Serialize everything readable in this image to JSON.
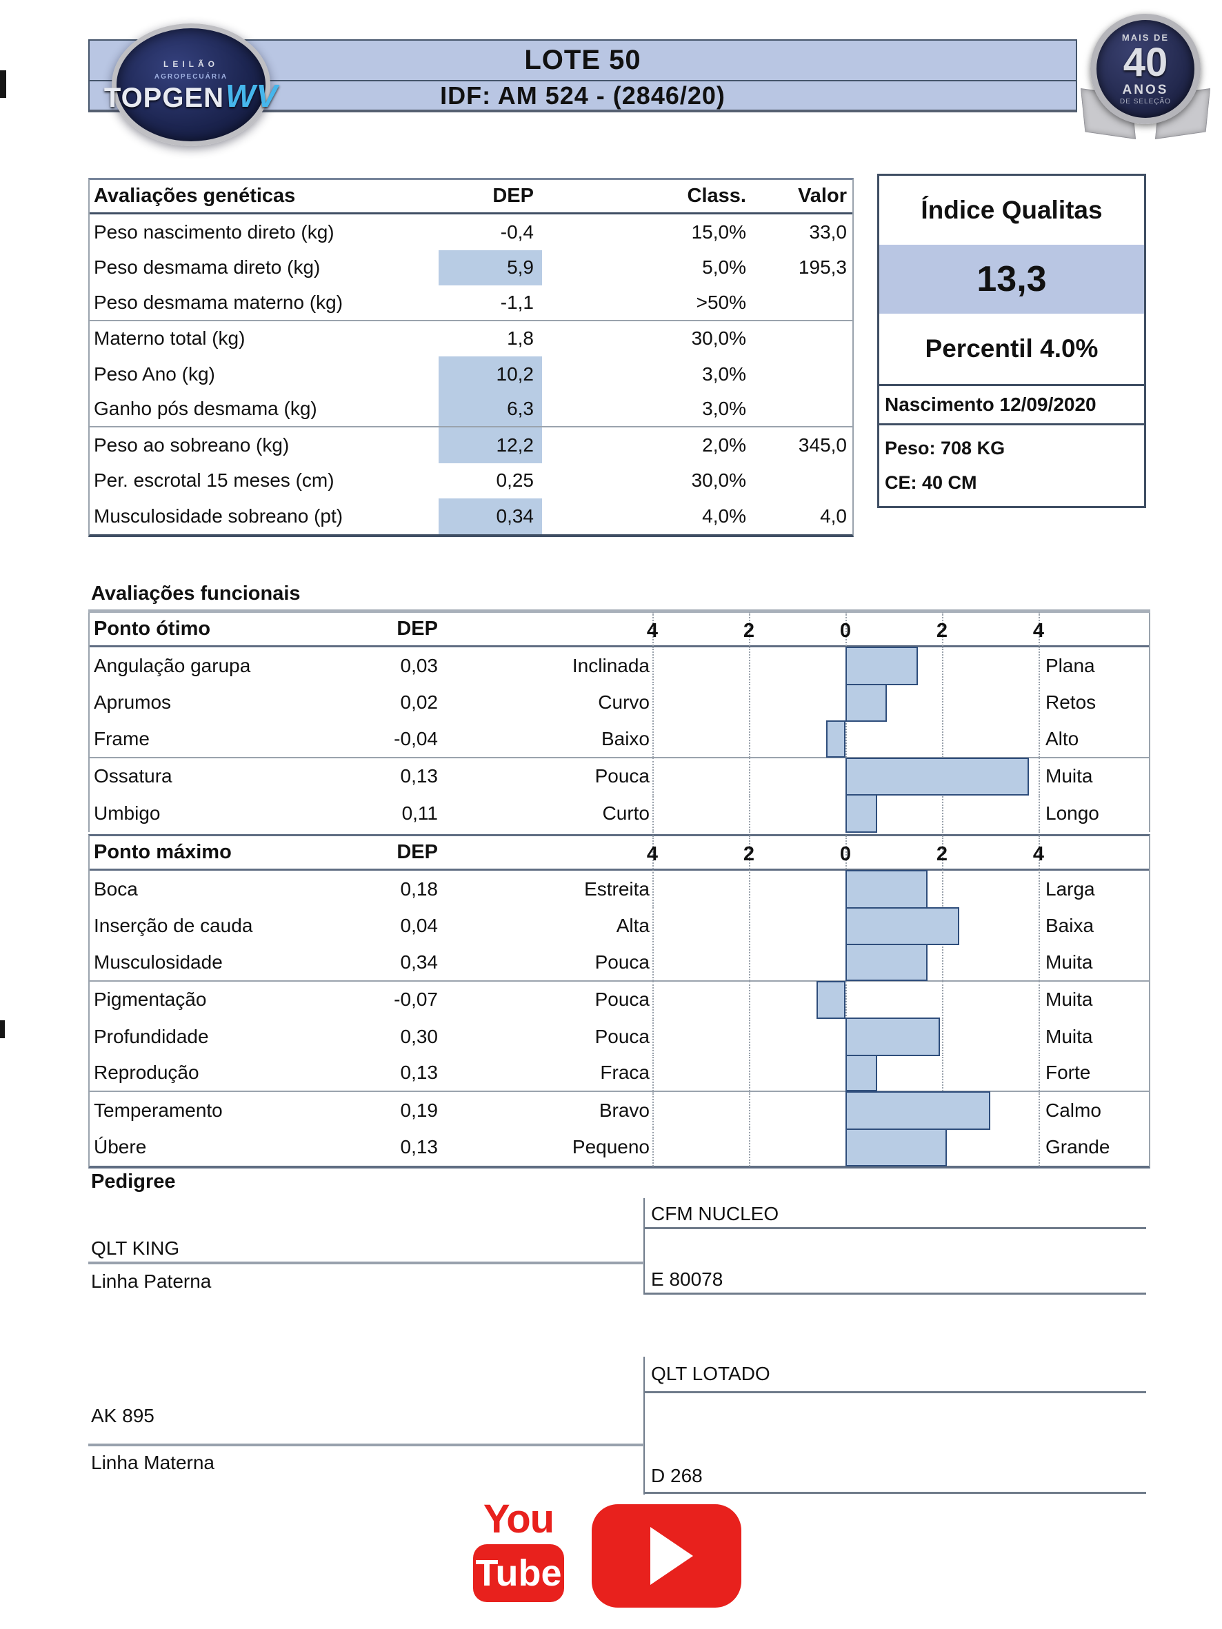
{
  "header": {
    "lot_title": "LOTE 50",
    "idf_line": "IDF: AM 524 - (2846/20)",
    "logo": {
      "line1": "LEILÃO",
      "line2": "AGROPECUÁRIA",
      "main": "TOPGEN",
      "suffix": "WV"
    },
    "badge": {
      "top_text": "MAIS DE",
      "number": "40",
      "bottom_text": "ANOS",
      "sub_text": "DE SELEÇÃO"
    }
  },
  "genetics": {
    "title": "Avaliações genéticas",
    "col_dep": "DEP",
    "col_class": "Class.",
    "col_valor": "Valor",
    "rows": [
      {
        "label": "Peso nascimento direto (kg)",
        "dep": "-0,4",
        "cls": "15,0%",
        "val": "33,0",
        "hl": false,
        "sep": false
      },
      {
        "label": "Peso desmama direto (kg)",
        "dep": "5,9",
        "cls": "5,0%",
        "val": "195,3",
        "hl": true,
        "sep": false
      },
      {
        "label": "Peso desmama materno (kg)",
        "dep": "-1,1",
        "cls": ">50%",
        "val": "",
        "hl": false,
        "sep": true
      },
      {
        "label": "Materno total (kg)",
        "dep": "1,8",
        "cls": "30,0%",
        "val": "",
        "hl": false,
        "sep": false
      },
      {
        "label": "Peso Ano (kg)",
        "dep": "10,2",
        "cls": "3,0%",
        "val": "",
        "hl": true,
        "sep": false
      },
      {
        "label": "Ganho pós desmama (kg)",
        "dep": "6,3",
        "cls": "3,0%",
        "val": "",
        "hl": true,
        "sep": true
      },
      {
        "label": "Peso ao sobreano (kg)",
        "dep": "12,2",
        "cls": "2,0%",
        "val": "345,0",
        "hl": true,
        "sep": false
      },
      {
        "label": "Per. escrotal 15 meses (cm)",
        "dep": "0,25",
        "cls": "30,0%",
        "val": "",
        "hl": false,
        "sep": false
      },
      {
        "label": "Musculosidade sobreano (pt)",
        "dep": "0,34",
        "cls": "4,0%",
        "val": "4,0",
        "hl": true,
        "sep": false
      }
    ]
  },
  "qualitas": {
    "title": "Índice Qualitas",
    "value": "13,3",
    "percentile": "Percentil 4.0%",
    "birth": "Nascimento 12/09/2020",
    "weight": "Peso: 708 KG",
    "scrotal": "CE: 40 CM"
  },
  "functional": {
    "title": "Avaliações funcionais",
    "axis": [
      "4",
      "2",
      "0",
      "2",
      "4"
    ],
    "optimal": {
      "title": "Ponto ótimo",
      "col_dep": "DEP",
      "rows": [
        {
          "label": "Angulação garupa",
          "dep": "0,03",
          "low": "Inclinada",
          "high": "Plana",
          "bar": 1.5,
          "sep": false
        },
        {
          "label": "Aprumos",
          "dep": "0,02",
          "low": "Curvo",
          "high": "Retos",
          "bar": 0.85,
          "sep": false
        },
        {
          "label": "Frame",
          "dep": "-0,04",
          "low": "Baixo",
          "high": "Alto",
          "bar": -0.4,
          "sep": true
        },
        {
          "label": "Ossatura",
          "dep": "0,13",
          "low": "Pouca",
          "high": "Muita",
          "bar": 3.8,
          "sep": false
        },
        {
          "label": "Umbigo",
          "dep": "0,11",
          "low": "Curto",
          "high": "Longo",
          "bar": 0.65,
          "sep": false
        }
      ]
    },
    "maximum": {
      "title": "Ponto máximo",
      "col_dep": "DEP",
      "rows": [
        {
          "label": "Boca",
          "dep": "0,18",
          "low": "Estreita",
          "high": "Larga",
          "bar": 1.7,
          "sep": false
        },
        {
          "label": "Inserção de cauda",
          "dep": "0,04",
          "low": "Alta",
          "high": "Baixa",
          "bar": 2.35,
          "sep": false
        },
        {
          "label": "Musculosidade",
          "dep": "0,34",
          "low": "Pouca",
          "high": "Muita",
          "bar": 1.7,
          "sep": true
        },
        {
          "label": "Pigmentação",
          "dep": "-0,07",
          "low": "Pouca",
          "high": "Muita",
          "bar": -0.6,
          "sep": false
        },
        {
          "label": "Profundidade",
          "dep": "0,30",
          "low": "Pouca",
          "high": "Muita",
          "bar": 1.95,
          "sep": false
        },
        {
          "label": "Reprodução",
          "dep": "0,13",
          "low": "Fraca",
          "high": "Forte",
          "bar": 0.65,
          "sep": true
        },
        {
          "label": "Temperamento",
          "dep": "0,19",
          "low": "Bravo",
          "high": "Calmo",
          "bar": 3.0,
          "sep": false
        },
        {
          "label": "Úbere",
          "dep": "0,13",
          "low": "Pequeno",
          "high": "Grande",
          "bar": 2.1,
          "sep": false
        }
      ]
    }
  },
  "pedigree": {
    "title": "Pedigree",
    "sire": "QLT KING",
    "paternal_label": "Linha Paterna",
    "sire_sire": "CFM NUCLEO",
    "sire_dam": "E 80078",
    "dam": "AK 895",
    "maternal_label": "Linha Materna",
    "dam_sire": "QLT LOTADO",
    "dam_dam": "D 268"
  },
  "footer": {
    "youtube": {
      "you": "You",
      "tube": "Tube"
    }
  },
  "colors": {
    "band_blue": "#b9c6e3",
    "highlight_blue": "#b8cce4",
    "bar_border": "#2e4d7b",
    "youtube_red": "#e8211d",
    "badge_navy": "#23294e"
  },
  "chart_data": [
    {
      "type": "bar",
      "orientation": "horizontal",
      "title": "Ponto ótimo",
      "categories": [
        "Angulação garupa",
        "Aprumos",
        "Frame",
        "Ossatura",
        "Umbigo"
      ],
      "values": [
        1.5,
        0.85,
        -0.4,
        3.8,
        0.65
      ],
      "dep_values": [
        0.03,
        0.02,
        -0.04,
        0.13,
        0.11
      ],
      "low_labels": [
        "Inclinada",
        "Curvo",
        "Baixo",
        "Pouca",
        "Curto"
      ],
      "high_labels": [
        "Plana",
        "Retos",
        "Alto",
        "Muita",
        "Longo"
      ],
      "xlim": [
        -4,
        4
      ],
      "tick_labels": [
        "4",
        "2",
        "0",
        "2",
        "4"
      ],
      "grid": "dotted-vertical",
      "legend": "none"
    },
    {
      "type": "bar",
      "orientation": "horizontal",
      "title": "Ponto máximo",
      "categories": [
        "Boca",
        "Inserção de cauda",
        "Musculosidade",
        "Pigmentação",
        "Profundidade",
        "Reprodução",
        "Temperamento",
        "Úbere"
      ],
      "values": [
        1.7,
        2.35,
        1.7,
        -0.6,
        1.95,
        0.65,
        3.0,
        2.1
      ],
      "dep_values": [
        0.18,
        0.04,
        0.34,
        -0.07,
        0.3,
        0.13,
        0.19,
        0.13
      ],
      "low_labels": [
        "Estreita",
        "Alta",
        "Pouca",
        "Pouca",
        "Pouca",
        "Fraca",
        "Bravo",
        "Pequeno"
      ],
      "high_labels": [
        "Larga",
        "Baixa",
        "Muita",
        "Muita",
        "Muita",
        "Forte",
        "Calmo",
        "Grande"
      ],
      "xlim": [
        -4,
        4
      ],
      "tick_labels": [
        "4",
        "2",
        "0",
        "2",
        "4"
      ],
      "grid": "dotted-vertical",
      "legend": "none"
    }
  ]
}
